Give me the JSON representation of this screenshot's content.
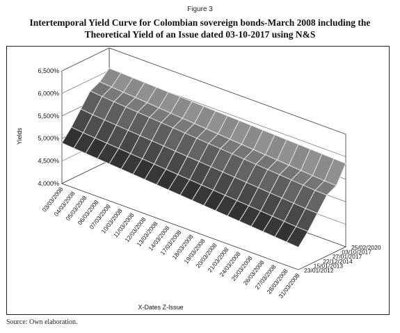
{
  "figure_label": "Figure 3",
  "title_line1": "Intertemporal Yield Curve for Colombian sovereign bonds-March 2008 including the",
  "title_line2": "Theoretical Yield of an Issue dated 03-10-2017 using N&S",
  "source": "Source: Own elaboration.",
  "chart_data": {
    "type": "area",
    "subtype": "3d-surface",
    "ylabel": "Yields",
    "xlabel": "X-Dates Z-Issue",
    "ylim": [
      4.0,
      6.5
    ],
    "y_ticks": [
      "4,000%",
      "4,500%",
      "5,000%",
      "5,500%",
      "6,000%",
      "6,500%"
    ],
    "x_categories": [
      "03/03/2008",
      "04/03/2008",
      "05/03/2008",
      "06/03/2008",
      "07/03/2008",
      "10/03/2008",
      "11/03/2008",
      "12/03/2008",
      "13/03/2008",
      "14/03/2008",
      "17/03/2008",
      "18/03/2008",
      "19/03/2008",
      "20/03/2008",
      "21/03/2008",
      "24/03/2008",
      "25/03/2008",
      "26/03/2008",
      "27/03/2008",
      "28/03/2008",
      "31/03/2008"
    ],
    "z_categories": [
      "23/01/2012",
      "15/01/2013",
      "22/12/2014",
      "27/01/2017",
      "03/10/2017",
      "25/02/2020"
    ],
    "series": [
      {
        "values": [
          4.9,
          4.88,
          4.86,
          4.84,
          4.82,
          4.8,
          4.78,
          4.76,
          4.74,
          4.72,
          4.7,
          4.68,
          4.66,
          4.64,
          4.62,
          4.6,
          4.58,
          4.56,
          4.54,
          4.52,
          4.5
        ]
      },
      {
        "values": [
          5.15,
          5.12,
          5.1,
          5.08,
          5.06,
          5.04,
          5.02,
          5.0,
          4.98,
          4.96,
          4.94,
          4.92,
          4.9,
          4.88,
          4.86,
          4.84,
          4.82,
          4.8,
          4.78,
          4.76,
          4.75
        ]
      },
      {
        "values": [
          5.45,
          5.42,
          5.4,
          5.38,
          5.36,
          5.34,
          5.32,
          5.3,
          5.28,
          5.26,
          5.24,
          5.22,
          5.2,
          5.18,
          5.16,
          5.14,
          5.12,
          5.1,
          5.08,
          5.06,
          5.05
        ]
      },
      {
        "values": [
          5.75,
          5.72,
          5.7,
          5.68,
          5.66,
          5.64,
          5.62,
          5.6,
          5.58,
          5.56,
          5.54,
          5.52,
          5.5,
          5.48,
          5.46,
          5.44,
          5.42,
          5.4,
          5.38,
          5.36,
          5.35
        ]
      },
      {
        "values": [
          5.85,
          5.83,
          5.81,
          5.79,
          5.77,
          5.75,
          5.73,
          5.71,
          5.69,
          5.67,
          5.65,
          5.63,
          5.61,
          5.59,
          5.57,
          5.55,
          5.53,
          5.51,
          5.49,
          5.47,
          5.46
        ]
      },
      {
        "values": [
          6.05,
          6.04,
          6.03,
          6.02,
          6.01,
          6.0,
          5.99,
          5.98,
          5.97,
          5.96,
          5.95,
          5.94,
          5.93,
          5.92,
          5.91,
          5.9,
          5.89,
          5.88,
          5.87,
          5.86,
          5.85
        ]
      }
    ],
    "grid": true,
    "legend": "none"
  }
}
